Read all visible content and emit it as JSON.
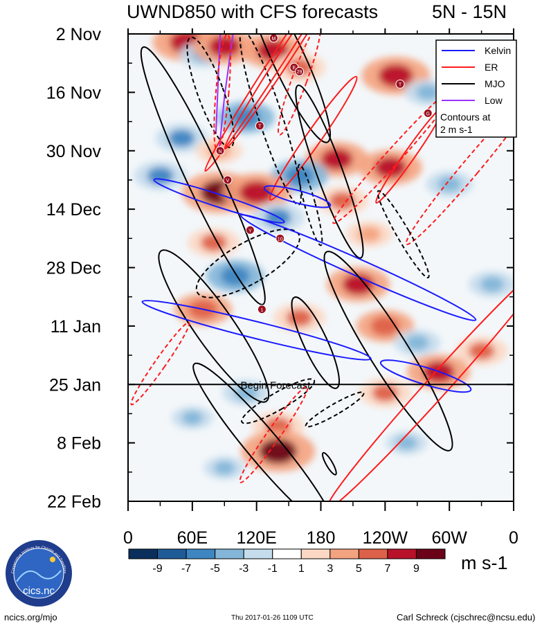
{
  "header": {
    "title": "UWND850 with CFS forecasts",
    "region": "5N - 15N"
  },
  "chart_data": {
    "type": "heatmap",
    "title": "UWND850 with CFS forecasts",
    "subtitle": "5N - 15N",
    "x_ticks": [
      "0",
      "60E",
      "120E",
      "180",
      "120W",
      "60W",
      "0"
    ],
    "x_tick_values_deg": [
      0,
      60,
      120,
      180,
      240,
      300,
      360
    ],
    "y_ticks": [
      "2 Nov",
      "16 Nov",
      "30 Nov",
      "14 Dec",
      "28 Dec",
      "11 Jan",
      "25 Jan",
      "8 Feb",
      "22 Feb"
    ],
    "y_range_days": [
      0,
      112
    ],
    "forecast_start_label": "Begin Forecast",
    "forecast_start_day": 84,
    "colorbar": {
      "levels": [
        "-9",
        "-7",
        "-5",
        "-3",
        "-1",
        "1",
        "3",
        "5",
        "7",
        "9"
      ],
      "colors": [
        "#0a2f5c",
        "#1f5c97",
        "#3e86c2",
        "#83b6d8",
        "#c5dcec",
        "#ffffff",
        "#fcd8c4",
        "#f4a380",
        "#dd6148",
        "#b8112a",
        "#6b0217"
      ],
      "units": "m s-1"
    },
    "legend": {
      "position": "top-right",
      "items": [
        {
          "label": "Kelvin",
          "color": "#1a1aff"
        },
        {
          "label": "ER",
          "color": "#ff1a1a"
        },
        {
          "label": "MJO",
          "color": "#000000"
        },
        {
          "label": "Low",
          "color": "#9b30ff"
        }
      ],
      "note_line1": "Contours at",
      "note_line2": "2 m s-1"
    },
    "wind_anomalies": [
      {
        "lon": 55,
        "day": 2,
        "val": 8
      },
      {
        "lon": 70,
        "day": 5,
        "val": -4
      },
      {
        "lon": 90,
        "day": 3,
        "val": 7
      },
      {
        "lon": 135,
        "day": 4,
        "val": 7
      },
      {
        "lon": 160,
        "day": 8,
        "val": 5
      },
      {
        "lon": 250,
        "day": 10,
        "val": 8
      },
      {
        "lon": 280,
        "day": 14,
        "val": -4
      },
      {
        "lon": 330,
        "day": 18,
        "val": 4
      },
      {
        "lon": 110,
        "day": 20,
        "val": -6
      },
      {
        "lon": 50,
        "day": 25,
        "val": -5
      },
      {
        "lon": 85,
        "day": 28,
        "val": 4
      },
      {
        "lon": 195,
        "day": 30,
        "val": 7
      },
      {
        "lon": 245,
        "day": 32,
        "val": 7
      },
      {
        "lon": 160,
        "day": 34,
        "val": -6
      },
      {
        "lon": 30,
        "day": 34,
        "val": -5
      },
      {
        "lon": 85,
        "day": 38,
        "val": 9
      },
      {
        "lon": 120,
        "day": 38,
        "val": 8
      },
      {
        "lon": 200,
        "day": 40,
        "val": 5
      },
      {
        "lon": 300,
        "day": 36,
        "val": -4
      },
      {
        "lon": 140,
        "day": 44,
        "val": -5
      },
      {
        "lon": 80,
        "day": 50,
        "val": 5
      },
      {
        "lon": 225,
        "day": 48,
        "val": 4
      },
      {
        "lon": 100,
        "day": 58,
        "val": -6
      },
      {
        "lon": 215,
        "day": 60,
        "val": 7
      },
      {
        "lon": 340,
        "day": 60,
        "val": -4
      },
      {
        "lon": 70,
        "day": 66,
        "val": 6
      },
      {
        "lon": 160,
        "day": 68,
        "val": 5
      },
      {
        "lon": 240,
        "day": 70,
        "val": 6
      },
      {
        "lon": 270,
        "day": 74,
        "val": -4
      },
      {
        "lon": 330,
        "day": 76,
        "val": 5
      },
      {
        "lon": 290,
        "day": 81,
        "val": 7
      },
      {
        "lon": 240,
        "day": 86,
        "val": 5
      },
      {
        "lon": 110,
        "day": 86,
        "val": -4
      },
      {
        "lon": 60,
        "day": 92,
        "val": -3
      },
      {
        "lon": 140,
        "day": 94,
        "val": 5
      },
      {
        "lon": 140,
        "day": 100,
        "val": 9
      },
      {
        "lon": 260,
        "day": 98,
        "val": -3
      },
      {
        "lon": 90,
        "day": 104,
        "val": -3
      }
    ],
    "filtered_contours": [
      {
        "type": "Low",
        "pts": [
          [
            85,
            28
          ],
          [
            90,
            15
          ],
          [
            98,
            0
          ]
        ],
        "style": "solid"
      },
      {
        "type": "Low",
        "pts": [
          [
            82,
            24
          ],
          [
            84,
            12
          ],
          [
            86,
            0
          ]
        ],
        "style": "solid"
      },
      {
        "type": "MJO",
        "lon": 77,
        "day": 14,
        "rx": 12,
        "ry": 28,
        "rot": -20,
        "style": "dashed"
      },
      {
        "type": "ER",
        "lon": 88,
        "day": 14,
        "rx": 6,
        "ry": 28,
        "rot": 5,
        "style": "dashed"
      },
      {
        "type": "MJO",
        "lon": 133,
        "day": 20,
        "rx": 11,
        "ry": 44,
        "rot": -18,
        "style": "dashed"
      },
      {
        "type": "MJO",
        "lon": 150,
        "day": 6,
        "rx": 15,
        "ry": 44,
        "rot": -25,
        "style": "solid"
      },
      {
        "type": "ER",
        "lon": 140,
        "day": 6,
        "rx": 6,
        "ry": 64,
        "rot": 33,
        "style": "solid"
      },
      {
        "type": "ER",
        "lon": 150,
        "day": 4,
        "rx": 6,
        "ry": 56,
        "rot": 33,
        "style": "solid"
      },
      {
        "type": "ER",
        "lon": 160,
        "day": 11,
        "rx": 7,
        "ry": 28,
        "rot": 20,
        "style": "dashed"
      },
      {
        "type": "ER",
        "lon": 173,
        "day": 25,
        "rx": 7,
        "ry": 36,
        "rot": 35,
        "style": "solid"
      },
      {
        "type": "MJO",
        "lon": 188,
        "day": 33,
        "rx": 12,
        "ry": 44,
        "rot": -20,
        "style": "solid"
      },
      {
        "type": "MJO",
        "lon": 70,
        "day": 34,
        "rx": 16,
        "ry": 68,
        "rot": -25,
        "style": "solid"
      },
      {
        "type": "MJO",
        "lon": 170,
        "day": 41,
        "rx": 5,
        "ry": 20,
        "rot": -15,
        "style": "dashed"
      },
      {
        "type": "ER",
        "lon": 249,
        "day": 29,
        "rx": 7,
        "ry": 44,
        "rot": 42,
        "style": "dashed"
      },
      {
        "type": "ER",
        "lon": 263,
        "day": 29,
        "rx": 5,
        "ry": 28,
        "rot": 35,
        "style": "solid"
      },
      {
        "type": "ER",
        "lon": 320,
        "day": 32,
        "rx": 8,
        "ry": 48,
        "rot": 40,
        "style": "dashed"
      },
      {
        "type": "MJO",
        "lon": 257,
        "day": 48,
        "rx": 6,
        "ry": 24,
        "rot": -30,
        "style": "dashed"
      },
      {
        "type": "MJO",
        "lon": 112,
        "day": 55,
        "rx": 19,
        "ry": 28,
        "rot": 60,
        "style": "dashed"
      },
      {
        "type": "Kelvin",
        "lon": 85,
        "day": 40,
        "rx": 64,
        "ry": 3,
        "rot": 18,
        "style": "solid"
      },
      {
        "type": "Kelvin",
        "lon": 158,
        "day": 39,
        "rx": 32,
        "ry": 3,
        "rot": 15,
        "style": "solid"
      },
      {
        "type": "Kelvin",
        "lon": 215,
        "day": 56,
        "rx": 120,
        "ry": 4,
        "rot": 24,
        "style": "solid"
      },
      {
        "type": "MJO",
        "lon": 80,
        "day": 70,
        "rx": 18,
        "ry": 44,
        "rot": -35,
        "style": "solid"
      },
      {
        "type": "MJO",
        "lon": 175,
        "day": 74,
        "rx": 11,
        "ry": 24,
        "rot": -25,
        "style": "solid"
      },
      {
        "type": "MJO",
        "lon": 243,
        "day": 76,
        "rx": 18,
        "ry": 56,
        "rot": -32,
        "style": "solid"
      },
      {
        "type": "Kelvin",
        "lon": 120,
        "day": 71,
        "rx": 110,
        "ry": 4,
        "rot": 14,
        "style": "solid"
      },
      {
        "type": "ER",
        "lon": 290,
        "day": 84,
        "rx": 10,
        "ry": 80,
        "rot": 42,
        "style": "solid"
      },
      {
        "type": "Kelvin",
        "lon": 278,
        "day": 82,
        "rx": 44,
        "ry": 4,
        "rot": 17,
        "style": "solid"
      },
      {
        "type": "ER",
        "lon": 30,
        "day": 79,
        "rx": 5,
        "ry": 24,
        "rot": 35,
        "style": "dashed"
      },
      {
        "type": "MJO",
        "lon": 140,
        "day": 88,
        "rx": 8,
        "ry": 20,
        "rot": 60,
        "style": "dashed"
      },
      {
        "type": "MJO",
        "lon": 193,
        "day": 90,
        "rx": 5,
        "ry": 16,
        "rot": 60,
        "style": "dashed"
      },
      {
        "type": "ER",
        "lon": 136,
        "day": 96,
        "rx": 6,
        "ry": 28,
        "rot": 35,
        "style": "dashed"
      },
      {
        "type": "MJO",
        "lon": 127,
        "day": 99,
        "rx": 15,
        "ry": 52,
        "rot": -40,
        "style": "solid"
      },
      {
        "type": "MJO",
        "lon": 188,
        "day": 103,
        "rx": 3,
        "ry": 6,
        "rot": -30,
        "style": "solid"
      }
    ],
    "storm_markers": [
      {
        "lon": 136,
        "day": 1,
        "label": "M"
      },
      {
        "lon": 155,
        "day": 8,
        "label": "E"
      },
      {
        "lon": 160,
        "day": 9,
        "label": "29"
      },
      {
        "lon": 254,
        "day": 12,
        "label": "T"
      },
      {
        "lon": 280,
        "day": 19,
        "label": "G"
      },
      {
        "lon": 123,
        "day": 22,
        "label": "T"
      },
      {
        "lon": 86,
        "day": 28,
        "label": "N"
      },
      {
        "lon": 93,
        "day": 35,
        "label": "V"
      },
      {
        "lon": 114,
        "day": 47,
        "label": "Y"
      },
      {
        "lon": 142,
        "day": 49,
        "label": "10"
      },
      {
        "lon": 125,
        "day": 66,
        "label": "1"
      }
    ]
  },
  "footer": {
    "logo_text": "cics.nc",
    "logo_ring_text": "Cooperative Institute for Climate and Satellites",
    "left_url": "ncics.org/mjo",
    "timestamp": "Thu 2017-01-26 1109 UTC",
    "author": "Carl Schreck (cjschrec@ncsu.edu)"
  }
}
